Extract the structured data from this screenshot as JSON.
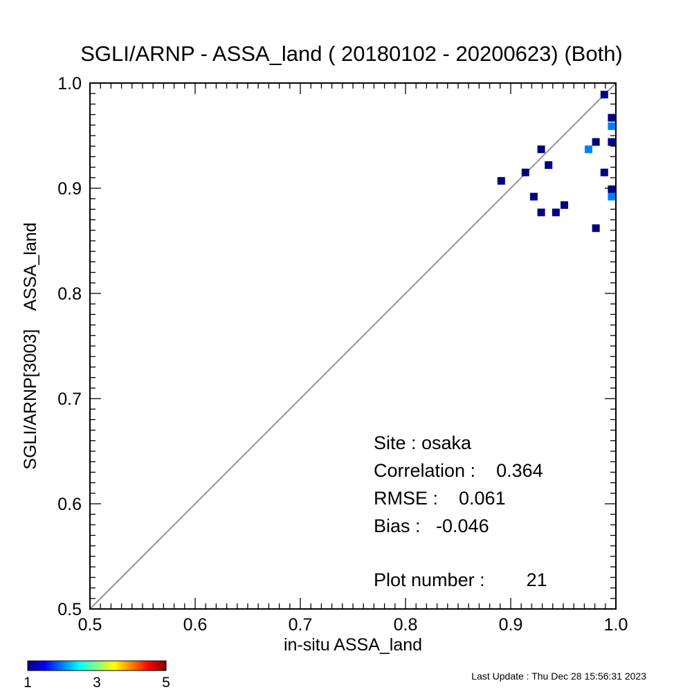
{
  "chart_data": {
    "type": "scatter",
    "title": "SGLI/ARNP - ASSA_land ( 20180102 - 20200623) (Both)",
    "xlabel": "in-situ ASSA_land",
    "ylabel": "SGLI/ARNP[3003]    ASSA_land",
    "xlim": [
      0.5,
      1.0
    ],
    "ylim": [
      0.5,
      1.0
    ],
    "x_ticks": [
      "0.5",
      "0.6",
      "0.7",
      "0.8",
      "0.9",
      "1.0"
    ],
    "y_ticks": [
      "0.5",
      "0.6",
      "0.7",
      "0.8",
      "0.9",
      "1.0"
    ],
    "one_to_one_line": true,
    "points": [
      {
        "x": 0.891,
        "y": 0.907,
        "count": 1
      },
      {
        "x": 0.914,
        "y": 0.915,
        "count": 1
      },
      {
        "x": 0.922,
        "y": 0.892,
        "count": 1
      },
      {
        "x": 0.929,
        "y": 0.937,
        "count": 1
      },
      {
        "x": 0.929,
        "y": 0.877,
        "count": 1
      },
      {
        "x": 0.936,
        "y": 0.922,
        "count": 1
      },
      {
        "x": 0.943,
        "y": 0.877,
        "count": 1
      },
      {
        "x": 0.951,
        "y": 0.884,
        "count": 1
      },
      {
        "x": 0.974,
        "y": 0.937,
        "count": 2
      },
      {
        "x": 0.981,
        "y": 0.944,
        "count": 1
      },
      {
        "x": 0.981,
        "y": 0.862,
        "count": 1
      },
      {
        "x": 0.989,
        "y": 0.989,
        "count": 1
      },
      {
        "x": 0.989,
        "y": 0.915,
        "count": 1
      },
      {
        "x": 0.996,
        "y": 0.967,
        "count": 1
      },
      {
        "x": 0.996,
        "y": 0.959,
        "count": 2
      },
      {
        "x": 0.996,
        "y": 0.944,
        "count": 1
      },
      {
        "x": 0.996,
        "y": 0.899,
        "count": 1
      },
      {
        "x": 0.996,
        "y": 0.892,
        "count": 2
      }
    ],
    "colorbar": {
      "ticks": [
        "1",
        "3",
        "5"
      ],
      "min": 1,
      "max": 5,
      "colors": [
        "#00007f",
        "#0000ff",
        "#0080ff",
        "#00ffff",
        "#80ff80",
        "#ffff00",
        "#ff8000",
        "#ff0000",
        "#7f0000"
      ]
    },
    "stats": {
      "site": "Site : osaka",
      "correlation": "Correlation :    0.364",
      "rmse": "RMSE :    0.061",
      "bias": "Bias :   -0.046",
      "plot_number": "Plot number :        21"
    }
  },
  "footer": {
    "last_update": "Last Update : Thu Dec 28 15:56:31 2023"
  }
}
